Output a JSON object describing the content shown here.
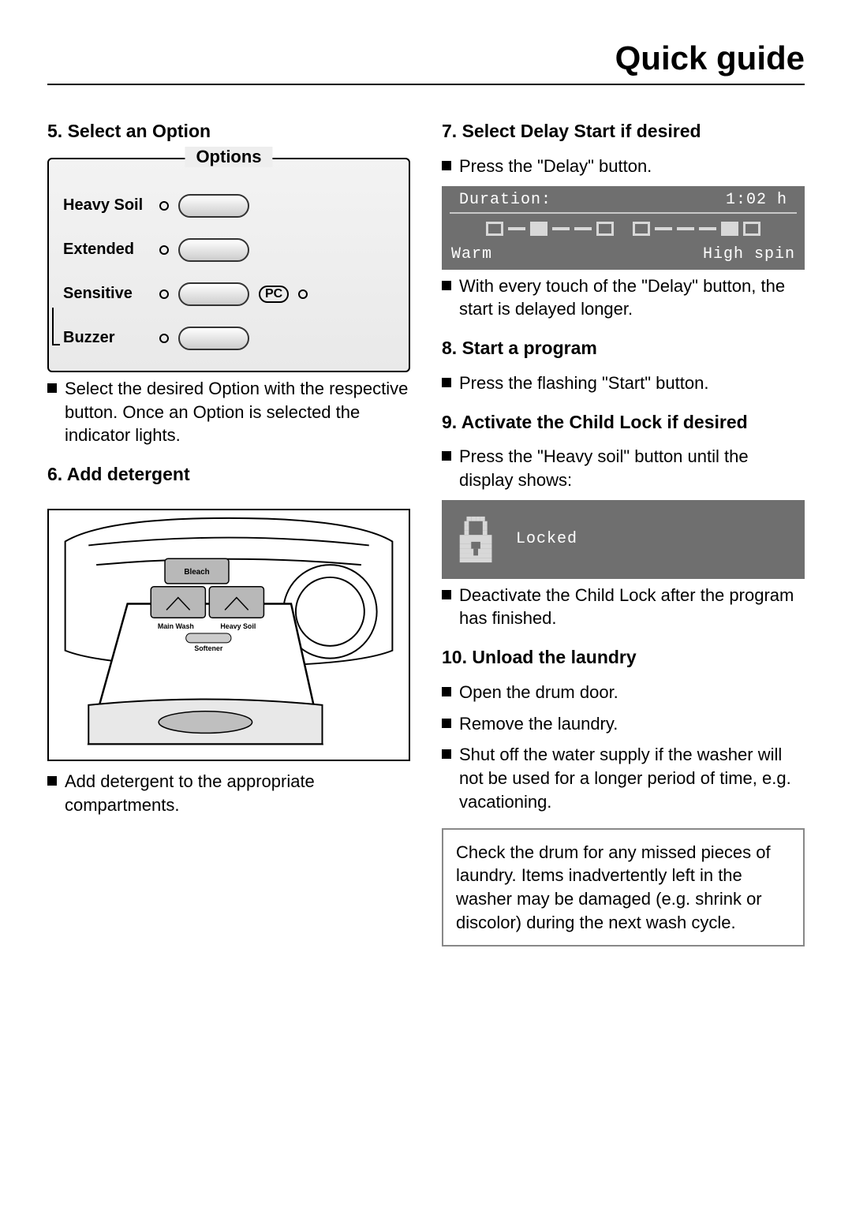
{
  "page": {
    "title": "Quick guide"
  },
  "left": {
    "step5": {
      "heading": "5. Select an Option",
      "panel_title": "Options",
      "options": {
        "heavy_soil": "Heavy Soil",
        "extended": "Extended",
        "sensitive": "Sensitive",
        "pc_label": "PC",
        "buzzer": "Buzzer"
      },
      "bullet": "Select the desired Option with the respective button. Once an Option is selected the indicator lights."
    },
    "step6": {
      "heading": "6. Add detergent",
      "drawer_labels": {
        "bleach": "Bleach",
        "main_wash": "Main Wash",
        "heavy_soil": "Heavy Soil",
        "softener": "Softener"
      },
      "bullet": "Add detergent to the appropriate compartments."
    }
  },
  "right": {
    "step7": {
      "heading": "7. Select Delay Start if desired",
      "bullet1": "Press the \"Delay\" button.",
      "lcd": {
        "duration_label": "Duration:",
        "duration_value": "1:02 h",
        "temp": "Warm",
        "spin": "High spin",
        "segments": [
          "open",
          "flat",
          "fill",
          "flat",
          "flat",
          "open",
          "gap",
          "open",
          "flat",
          "flat",
          "flat",
          "fill",
          "open"
        ]
      },
      "bullet2": "With every touch of the \"Delay\" button, the start is delayed longer."
    },
    "step8": {
      "heading": "8. Start a program",
      "bullet": "Press the flashing \"Start\" button."
    },
    "step9": {
      "heading": "9. Activate the Child Lock if desired",
      "bullet1": "Press the \"Heavy soil\" button until the display shows:",
      "lcd_locked": "Locked",
      "bullet2": "Deactivate the Child Lock after the program has finished."
    },
    "step10": {
      "heading": "10. Unload the laundry",
      "bullet1": "Open the drum door.",
      "bullet2": "Remove the laundry.",
      "bullet3": "Shut off the water supply if the washer will not be used for a longer period of time, e.g. vacationing.",
      "note": "Check the drum for any missed pieces of laundry. Items inadvertently left in the washer may be damaged (e.g. shrink or discolor) during the next wash cycle."
    }
  }
}
